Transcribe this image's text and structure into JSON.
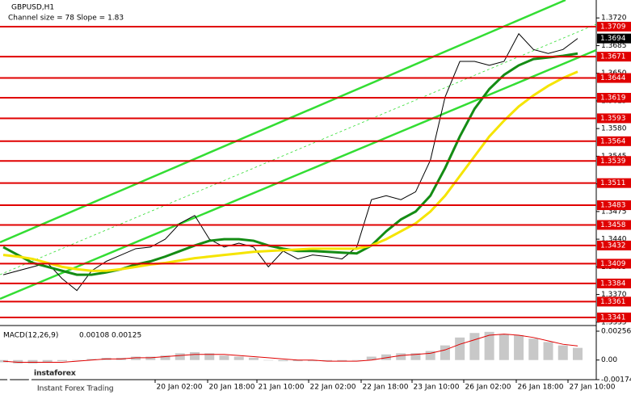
{
  "chart_data": {
    "type": "line",
    "title": "GBPUSD,H1",
    "subtitle": "Channel size = 78 Slope = 1.83",
    "ylim": [
      1.33338,
      1.37427
    ],
    "yticks": [
      {
        "value": 1.372,
        "label": "1.3720"
      },
      1.3685,
      {
        "value": 1.365,
        "label": "1.3650"
      },
      1.3615,
      {
        "value": 1.358,
        "label": "1.3580"
      },
      1.3545,
      {
        "value": 1.351,
        "label": "1.3510"
      },
      1.3475,
      {
        "value": 1.344,
        "label": "1.3440"
      },
      1.3405,
      {
        "value": 1.337,
        "label": "1.3370"
      },
      1.3335
    ],
    "levels": [
      1.3709,
      1.3671,
      1.3644,
      1.3619,
      1.3593,
      1.3564,
      1.3539,
      1.3511,
      1.3483,
      1.3458,
      1.3432,
      1.3409,
      1.3384,
      1.3361,
      1.3341
    ],
    "level_color": "#e00000",
    "last_price": 1.3694,
    "x_labels": [
      "20 Jan 02:00",
      "20 Jan 18:00",
      "21 Jan 10:00",
      "22 Jan 02:00",
      "22 Jan 18:00",
      "23 Jan 10:00",
      "26 Jan 02:00",
      "26 Jan 18:00",
      "27 Jan 10:00"
    ],
    "series": [
      {
        "color": "#000000",
        "values": [
          1.3395,
          1.34,
          1.3405,
          1.341,
          1.339,
          1.3375,
          1.34,
          1.3412,
          1.342,
          1.3428,
          1.343,
          1.344,
          1.346,
          1.347,
          1.344,
          1.343,
          1.3435,
          1.343,
          1.3405,
          1.3425,
          1.3415,
          1.342,
          1.3418,
          1.3415,
          1.343,
          1.349,
          1.3495,
          1.349,
          1.35,
          1.354,
          1.362,
          1.3665,
          1.3665,
          1.366,
          1.3665,
          1.37,
          1.368,
          1.3675,
          1.368,
          1.3694
        ]
      },
      {
        "color": "#148c14",
        "values": [
          1.343,
          1.342,
          1.341,
          1.3405,
          1.34,
          1.3395,
          1.3395,
          1.3398,
          1.3402,
          1.3408,
          1.3412,
          1.3418,
          1.3425,
          1.3432,
          1.3438,
          1.344,
          1.344,
          1.3438,
          1.3432,
          1.3428,
          1.3425,
          1.3425,
          1.3424,
          1.3423,
          1.3422,
          1.3432,
          1.345,
          1.3465,
          1.3475,
          1.3495,
          1.353,
          1.357,
          1.3605,
          1.363,
          1.3648,
          1.366,
          1.3668,
          1.367,
          1.3672,
          1.3675
        ]
      },
      {
        "color": "#f5e400",
        "values": [
          1.342,
          1.3418,
          1.3415,
          1.341,
          1.3405,
          1.3402,
          1.34,
          1.34,
          1.3402,
          1.3405,
          1.3408,
          1.341,
          1.3413,
          1.3416,
          1.3418,
          1.342,
          1.3422,
          1.3424,
          1.3425,
          1.3426,
          1.3427,
          1.3428,
          1.3428,
          1.3428,
          1.3428,
          1.3432,
          1.344,
          1.345,
          1.346,
          1.3475,
          1.3495,
          1.352,
          1.3545,
          1.357,
          1.359,
          1.3608,
          1.3622,
          1.3634,
          1.3644,
          1.3652
        ]
      }
    ],
    "macd": {
      "label": "MACD(12,26,9)",
      "main": 0.00108,
      "signal": 0.00125,
      "ylim": [
        -0.00174,
        0.00256
      ],
      "yticks": [
        0.00256,
        {
          "value": 0,
          "label": "0.00"
        },
        -0.00174
      ],
      "histogram_color": "#c8c8c8",
      "signal_color": "#e00000",
      "histogram": [
        -0.0002,
        -0.0003,
        -0.0003,
        -0.0002,
        -0.0001,
        0,
        0.0001,
        0.0002,
        0.0002,
        0.0003,
        0.0003,
        0.0004,
        0.0006,
        0.0007,
        0.0006,
        0.0004,
        0.0003,
        0.0002,
        0,
        -0.0001,
        -0.0001,
        -0.0001,
        -0.0001,
        -0.0001,
        0,
        0.0003,
        0.0005,
        0.0006,
        0.0006,
        0.0008,
        0.0013,
        0.002,
        0.0024,
        0.0025,
        0.0023,
        0.0022,
        0.0019,
        0.0016,
        0.0013,
        0.00108
      ],
      "signal_line": [
        -0.0001,
        -0.0002,
        -0.0002,
        -0.0002,
        -0.0002,
        -0.0001,
        0,
        0.0001,
        0.0001,
        0.0002,
        0.0002,
        0.0003,
        0.0004,
        0.0005,
        0.0005,
        0.0005,
        0.0004,
        0.0003,
        0.0002,
        0.0001,
        0,
        0,
        -0.0001,
        -0.0001,
        -0.0001,
        0,
        0.0002,
        0.0004,
        0.0005,
        0.0006,
        0.0009,
        0.0014,
        0.0018,
        0.0022,
        0.0023,
        0.0022,
        0.002,
        0.0017,
        0.0014,
        0.00125
      ]
    },
    "brand": "instaforex",
    "tagline": "Instant Forex Trading"
  }
}
